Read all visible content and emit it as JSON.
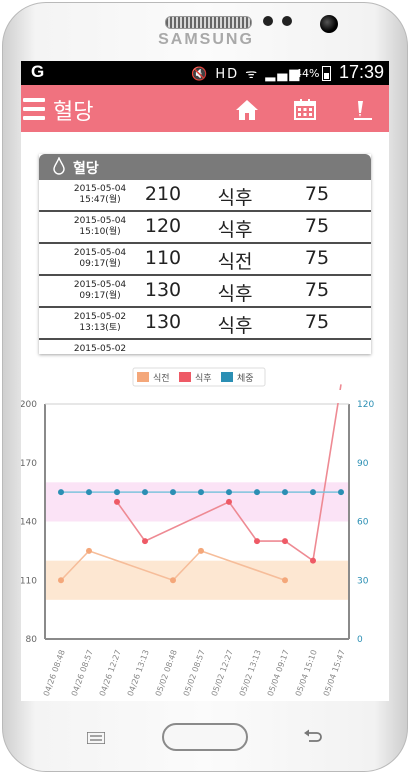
{
  "device": {
    "brand": "SAMSUNG"
  },
  "status_bar": {
    "left_icon": "G",
    "icons": "🔇 HD ᯤ ▂▄▆",
    "battery_pct": "44%",
    "time": "17:39"
  },
  "app_bar": {
    "title": "혈당",
    "actions": [
      "home-icon",
      "calendar-icon",
      "edit-icon"
    ]
  },
  "card": {
    "title": "혈당",
    "rows": [
      {
        "date": "2015-05-04",
        "time": "15:47(월)",
        "value": "210",
        "meal": "식후",
        "weight": "75"
      },
      {
        "date": "2015-05-04",
        "time": "15:10(월)",
        "value": "120",
        "meal": "식후",
        "weight": "75"
      },
      {
        "date": "2015-05-04",
        "time": "09:17(월)",
        "value": "110",
        "meal": "식전",
        "weight": "75"
      },
      {
        "date": "2015-05-04",
        "time": "09:17(월)",
        "value": "130",
        "meal": "식후",
        "weight": "75"
      },
      {
        "date": "2015-05-02",
        "time": "13:13(토)",
        "value": "130",
        "meal": "식후",
        "weight": "75"
      },
      {
        "date": "2015-05-02",
        "time": "",
        "value": "",
        "meal": "",
        "weight": ""
      }
    ]
  },
  "chart_data": {
    "type": "line",
    "legend_position": "top-center",
    "categories": [
      "04/26 08:48",
      "04/26 08:57",
      "04/26 12:27",
      "04/26 13:13",
      "05/02 08:48",
      "05/02 08:57",
      "05/02 12:27",
      "05/02 13:13",
      "05/04 09:17",
      "05/04 15:10",
      "05/04 15:47"
    ],
    "y_left": {
      "min": 80,
      "max": 200,
      "ticks": [
        80,
        110,
        140,
        170,
        200
      ]
    },
    "y_right": {
      "min": 0,
      "max": 120,
      "ticks": [
        0,
        30,
        60,
        90,
        120
      ]
    },
    "bands": [
      {
        "from": 140,
        "to": 160,
        "color": "#fbe3f6"
      },
      {
        "from": 100,
        "to": 120,
        "color": "#fde7d2"
      }
    ],
    "series": [
      {
        "name": "식전",
        "axis": "left",
        "color": "#f4a77a",
        "line": "#f6bd9a",
        "values": [
          110,
          125,
          null,
          null,
          110,
          125,
          null,
          null,
          110,
          null,
          null
        ]
      },
      {
        "name": "식후",
        "axis": "left",
        "color": "#ee5a66",
        "line": "#ee8a93",
        "values": [
          null,
          null,
          150,
          130,
          null,
          null,
          150,
          130,
          130,
          120,
          210
        ]
      },
      {
        "name": "체중",
        "axis": "right",
        "color": "#2b8fb4",
        "line": "#7ec3dc",
        "values": [
          75,
          75,
          75,
          75,
          75,
          75,
          75,
          75,
          75,
          75,
          75
        ]
      }
    ]
  }
}
